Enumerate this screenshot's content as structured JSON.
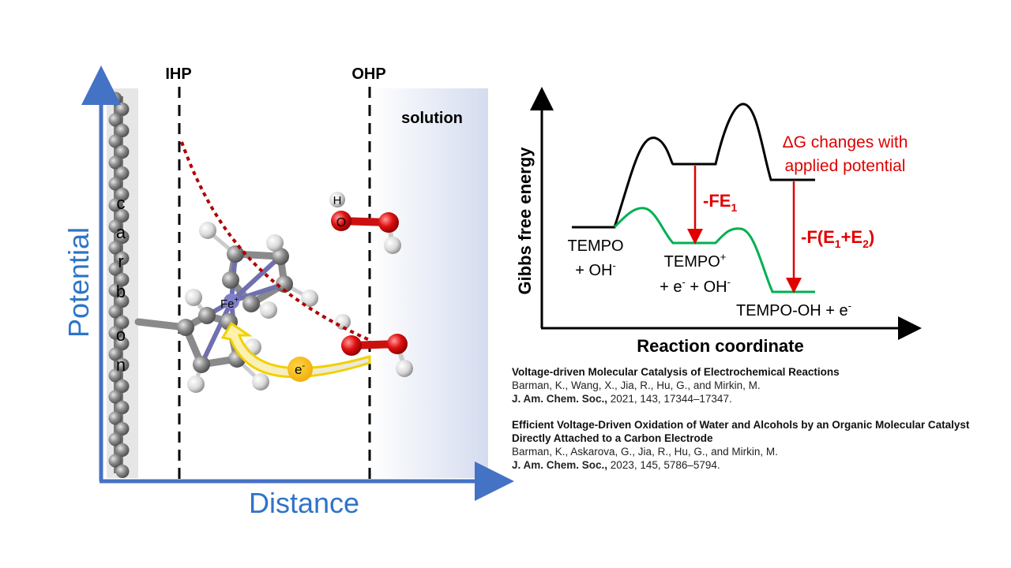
{
  "left_diagram": {
    "ihp_label": "IHP",
    "ohp_label": "OHP",
    "solution_label": "solution",
    "y_axis_label": "Potential",
    "x_axis_label": "Distance",
    "electrode_letters": [
      "c",
      "a",
      "r",
      "b",
      "o",
      "n"
    ],
    "fe_label": "Fe",
    "fe_charge": "+",
    "electron_label": "e",
    "electron_charge": "-",
    "water_h_label": "H",
    "water_o_label": "O"
  },
  "energy_diagram": {
    "y_axis_label": "Gibbs free energy",
    "x_axis_label": "Reaction coordinate",
    "state1_line1": "TEMPO",
    "state1_line2": "+ OH",
    "state1_line2_sup": "-",
    "state2_line1": "TEMPO",
    "state2_line1_sup": "+",
    "state2_line2a": "+ e",
    "state2_line2a_sup": "-",
    "state2_line2b": " + OH",
    "state2_line2b_sup": "-",
    "state3": "TEMPO-OH + e",
    "state3_sup": "-",
    "dg_line1": "ΔG changes with",
    "dg_line2": "applied potential",
    "arrow1_label": "-FE",
    "arrow1_sub": "1",
    "arrow2_label_a": "-F(E",
    "arrow2_sub1": "1",
    "arrow2_label_b": "+E",
    "arrow2_sub2": "2",
    "arrow2_label_c": ")",
    "colors": {
      "black_path": "#000000",
      "green_path": "#00b050",
      "red": "#e00000",
      "axis_blue": "#4472c4"
    }
  },
  "references": [
    {
      "title": "Voltage-driven Molecular Catalysis of Electrochemical Reactions",
      "authors": "Barman, K., Wang, X., Jia, R., Hu, G., and Mirkin, M.",
      "journal": "J. Am. Chem. Soc.,",
      "details": " 2021, 143, 17344–17347."
    },
    {
      "title": "Efficient Voltage-Driven Oxidation of Water and Alcohols by an Organic Molecular Catalyst Directly Attached to a Carbon Electrode",
      "authors": "Barman, K., Askarova, G., Jia, R., Hu, G., and Mirkin, M.",
      "journal": "J. Am. Chem. Soc.,",
      "details": " 2023, 145, 5786–5794."
    }
  ]
}
